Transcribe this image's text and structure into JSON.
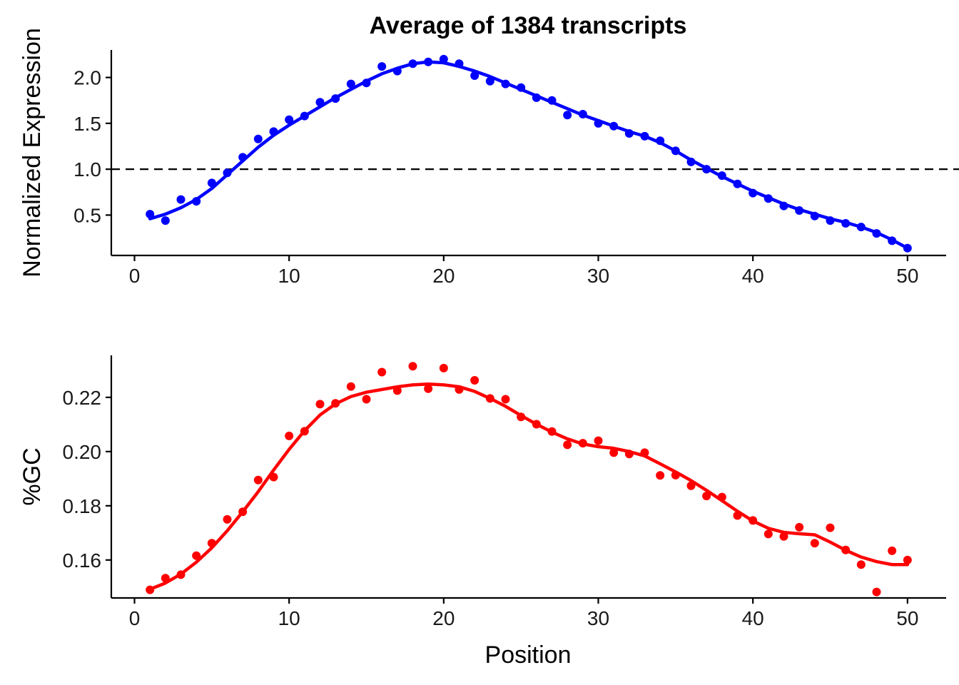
{
  "chart_data": [
    {
      "type": "scatter",
      "title": "Average of 1384 transcripts",
      "xlabel": "",
      "ylabel": "Normalized Expression",
      "xlim": [
        -1.5,
        52.5
      ],
      "ylim": [
        0.06,
        2.3
      ],
      "xticks": [
        0,
        10,
        20,
        30,
        40,
        50
      ],
      "xtick_labels": [
        "0",
        "10",
        "20",
        "30",
        "40",
        "50"
      ],
      "yticks": [
        0.5,
        1.0,
        1.5,
        2.0
      ],
      "ytick_labels": [
        "0.5",
        "1.0",
        "1.5",
        "2.0"
      ],
      "reference_line": {
        "y": 1.0,
        "style": "dashed"
      },
      "grid": false,
      "series": [
        {
          "color": "#0000ff",
          "x": [
            1,
            2,
            3,
            4,
            5,
            6,
            7,
            8,
            9,
            10,
            11,
            12,
            13,
            14,
            15,
            16,
            17,
            18,
            19,
            20,
            21,
            22,
            23,
            24,
            25,
            26,
            27,
            28,
            29,
            30,
            31,
            32,
            33,
            34,
            35,
            36,
            37,
            38,
            39,
            40,
            41,
            42,
            43,
            44,
            45,
            46,
            47,
            48,
            49,
            50
          ],
          "points": [
            0.51,
            0.44,
            0.67,
            0.65,
            0.85,
            0.96,
            1.13,
            1.33,
            1.41,
            1.54,
            1.58,
            1.73,
            1.77,
            1.93,
            1.94,
            2.12,
            2.07,
            2.15,
            2.17,
            2.2,
            2.15,
            2.02,
            1.96,
            1.93,
            1.89,
            1.78,
            1.75,
            1.59,
            1.6,
            1.5,
            1.47,
            1.39,
            1.36,
            1.31,
            1.2,
            1.08,
            1.0,
            0.93,
            0.84,
            0.74,
            0.68,
            0.6,
            0.55,
            0.49,
            0.44,
            0.41,
            0.37,
            0.3,
            0.22,
            0.14
          ],
          "smooth": [
            0.46,
            0.51,
            0.58,
            0.67,
            0.79,
            0.94,
            1.09,
            1.24,
            1.37,
            1.48,
            1.58,
            1.68,
            1.78,
            1.87,
            1.96,
            2.04,
            2.1,
            2.15,
            2.17,
            2.16,
            2.12,
            2.07,
            2.01,
            1.94,
            1.87,
            1.8,
            1.73,
            1.66,
            1.59,
            1.53,
            1.47,
            1.41,
            1.36,
            1.29,
            1.2,
            1.1,
            1.01,
            0.92,
            0.84,
            0.76,
            0.69,
            0.62,
            0.56,
            0.51,
            0.46,
            0.42,
            0.37,
            0.31,
            0.23,
            0.14
          ]
        }
      ]
    },
    {
      "type": "scatter",
      "title": "",
      "xlabel": "Position",
      "ylabel": "%GC",
      "xlim": [
        -1.5,
        52.5
      ],
      "ylim": [
        0.146,
        0.2355
      ],
      "xticks": [
        0,
        10,
        20,
        30,
        40,
        50
      ],
      "xtick_labels": [
        "0",
        "10",
        "20",
        "30",
        "40",
        "50"
      ],
      "yticks": [
        0.16,
        0.18,
        0.2,
        0.22
      ],
      "ytick_labels": [
        "0.16",
        "0.18",
        "0.20",
        "0.22"
      ],
      "grid": false,
      "series": [
        {
          "color": "#ff0000",
          "x": [
            1,
            2,
            3,
            4,
            5,
            6,
            7,
            8,
            9,
            10,
            11,
            12,
            13,
            14,
            15,
            16,
            17,
            18,
            19,
            20,
            21,
            22,
            23,
            24,
            25,
            26,
            27,
            28,
            29,
            30,
            31,
            32,
            33,
            34,
            35,
            36,
            37,
            38,
            39,
            40,
            41,
            42,
            43,
            44,
            45,
            46,
            47,
            48,
            49,
            50
          ],
          "points": [
            0.149,
            0.1533,
            0.1546,
            0.1616,
            0.1662,
            0.175,
            0.1778,
            0.1895,
            0.1906,
            0.2058,
            0.2075,
            0.2175,
            0.2178,
            0.224,
            0.2193,
            0.2293,
            0.2225,
            0.2315,
            0.2232,
            0.2308,
            0.2229,
            0.2263,
            0.2196,
            0.2193,
            0.2128,
            0.2101,
            0.2074,
            0.2025,
            0.2031,
            0.204,
            0.1996,
            0.1991,
            0.1996,
            0.1912,
            0.1913,
            0.1874,
            0.1836,
            0.1832,
            0.1764,
            0.1746,
            0.1696,
            0.1687,
            0.1721,
            0.1662,
            0.1719,
            0.1637,
            0.1583,
            0.1482,
            0.1634,
            0.16
          ],
          "smooth": [
            0.1492,
            0.1515,
            0.1548,
            0.1592,
            0.1645,
            0.1708,
            0.1778,
            0.1852,
            0.1932,
            0.2008,
            0.2077,
            0.2135,
            0.2176,
            0.2203,
            0.2219,
            0.2229,
            0.2239,
            0.2246,
            0.2249,
            0.2246,
            0.2239,
            0.2222,
            0.2196,
            0.2167,
            0.2133,
            0.2101,
            0.2072,
            0.2047,
            0.2028,
            0.2018,
            0.2012,
            0.2,
            0.1984,
            0.1955,
            0.1925,
            0.1893,
            0.1857,
            0.1819,
            0.178,
            0.1744,
            0.1717,
            0.1702,
            0.1697,
            0.1693,
            0.1666,
            0.1636,
            0.1611,
            0.1594,
            0.1583,
            0.1583
          ]
        }
      ]
    }
  ]
}
